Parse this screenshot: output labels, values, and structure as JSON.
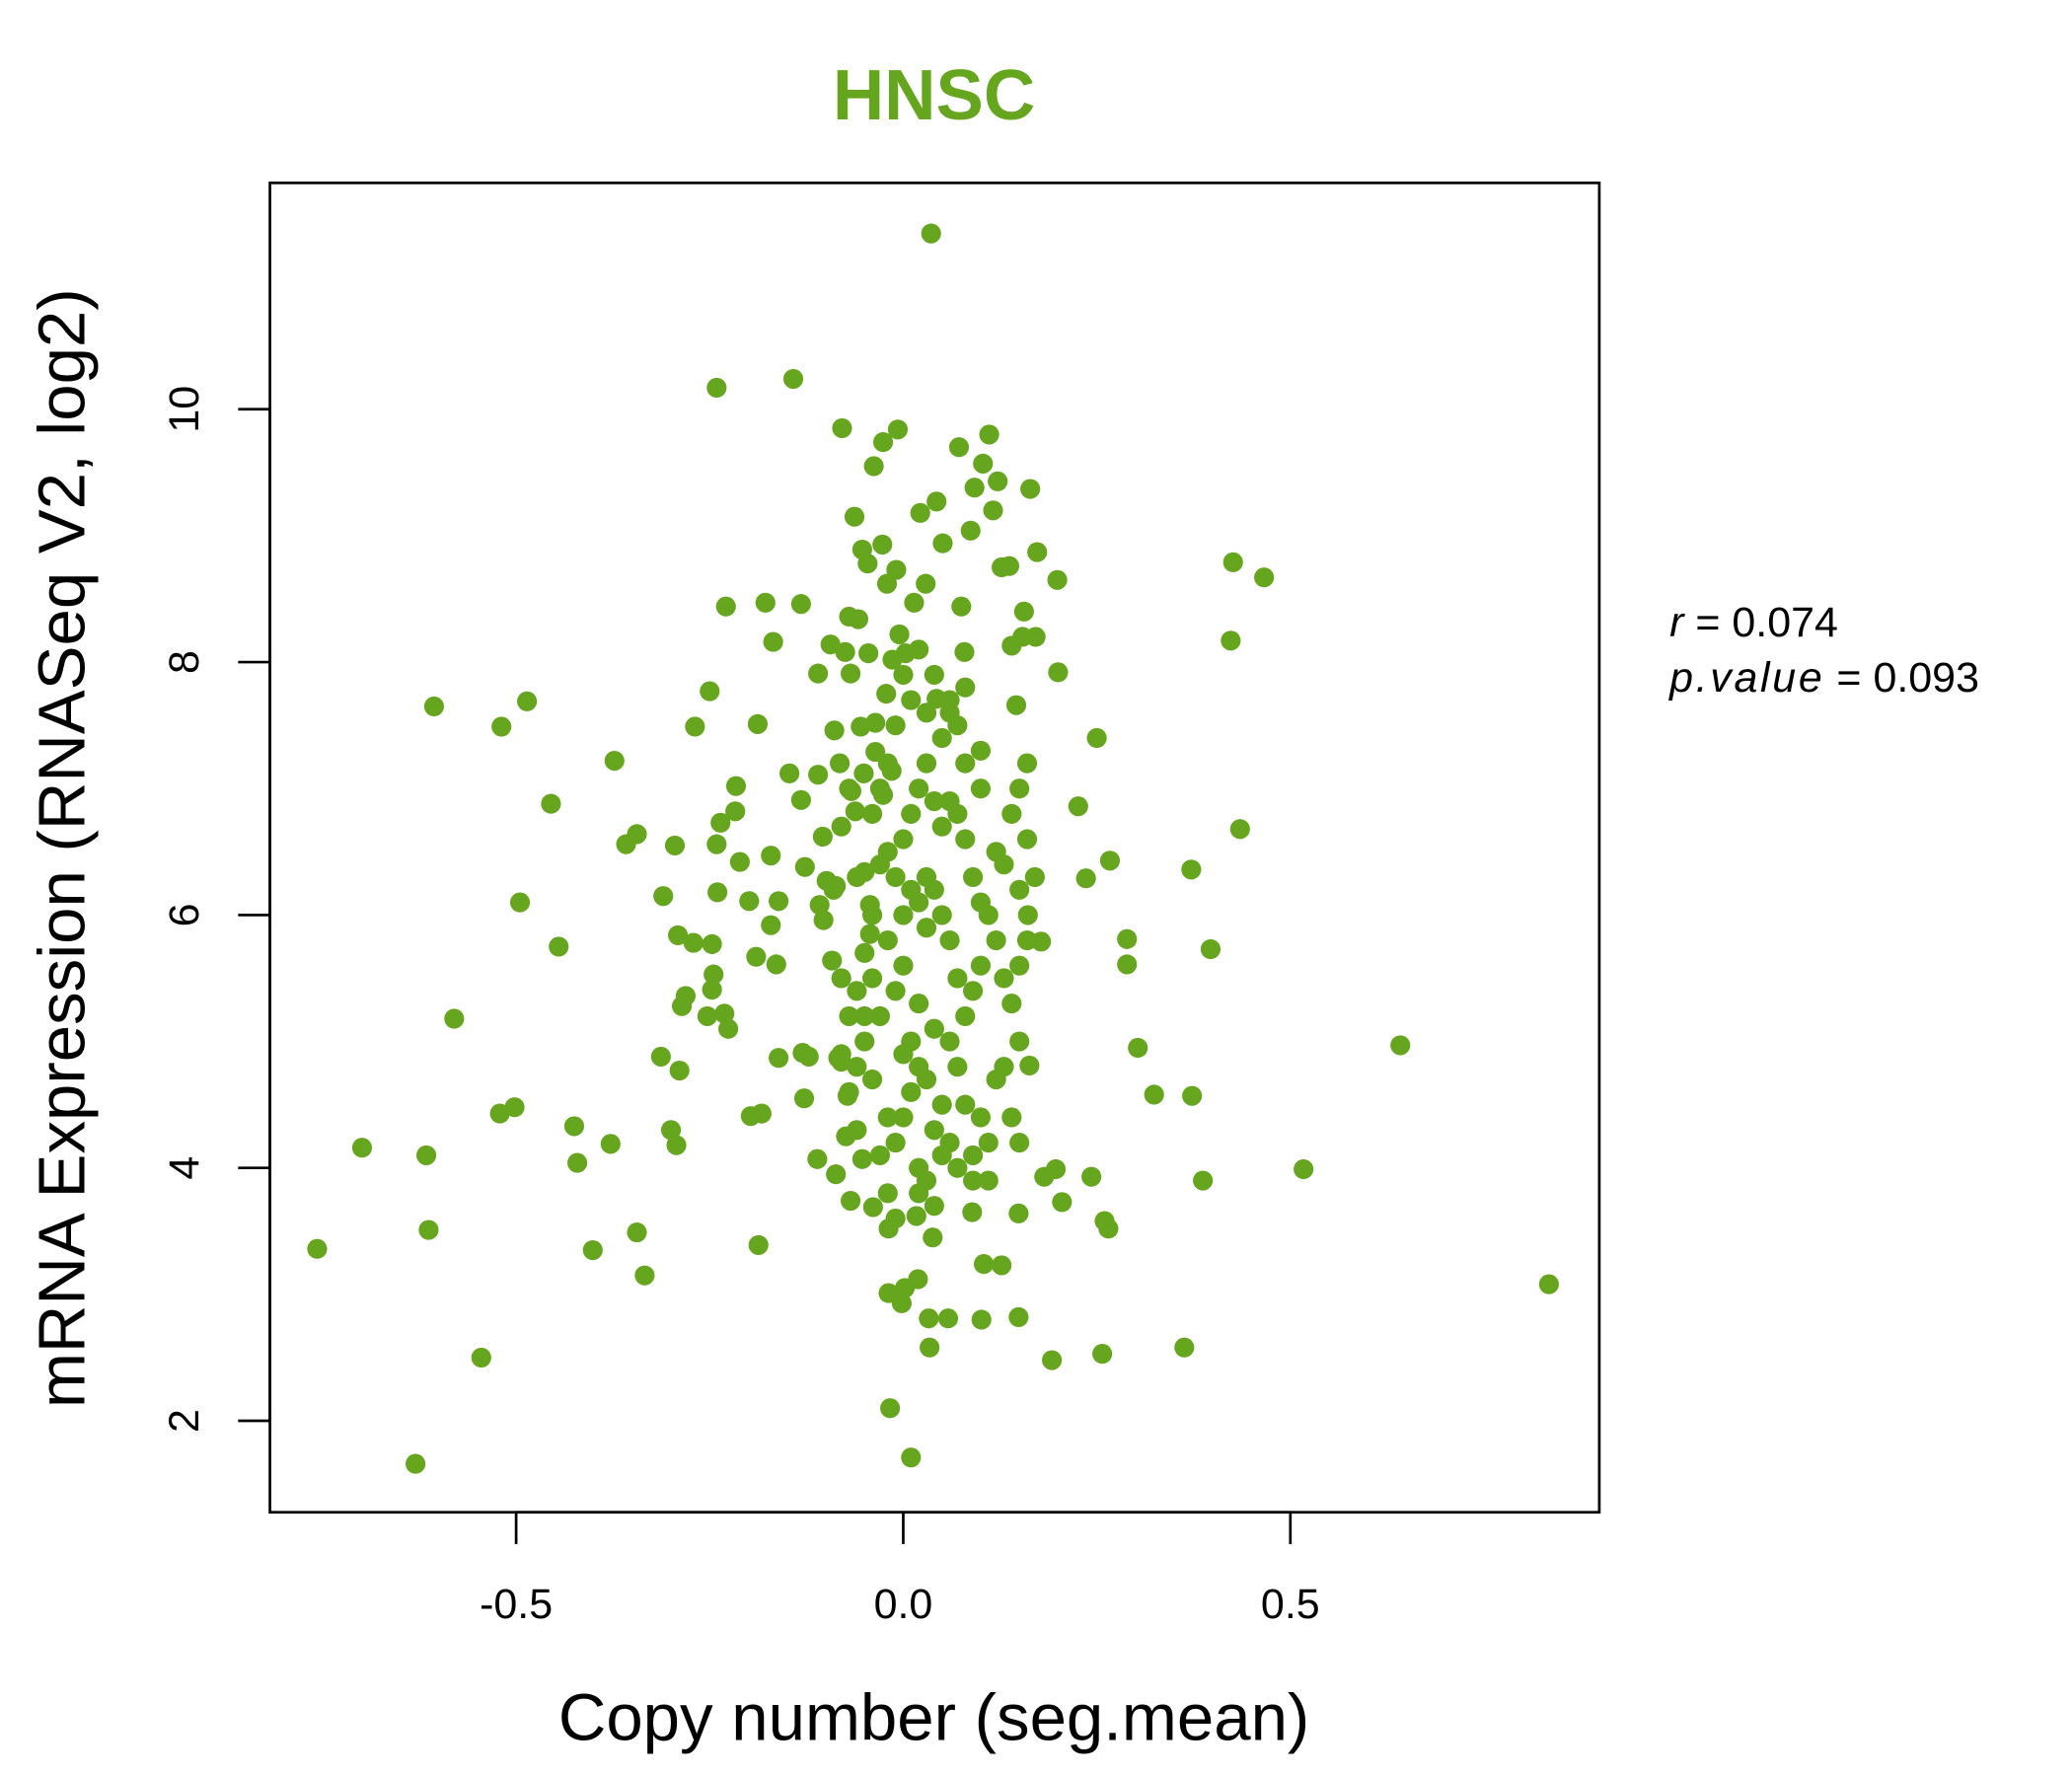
{
  "chart_data": {
    "type": "scatter",
    "title": "HNSC",
    "xlabel": "Copy number (seg.mean)",
    "ylabel": "mRNA Expression (RNASeq V2, log2)",
    "xlim": [
      -0.818,
      0.899
    ],
    "ylim": [
      1.277,
      11.79
    ],
    "xticks": [
      -0.5,
      0.0,
      0.5
    ],
    "xtick_labels": [
      "-0.5",
      "0.0",
      "0.5"
    ],
    "yticks": [
      2,
      4,
      6,
      8,
      10
    ],
    "ytick_labels": [
      "2",
      "4",
      "6",
      "8",
      "10"
    ],
    "grid": false,
    "point_color": "#66A61E",
    "title_color": "#66A61E",
    "stats": {
      "r_label": "r",
      "r_value": "0.074",
      "p_label": "p.value",
      "p_value": "0.093"
    },
    "points": [
      [
        -0.757,
        3.36
      ],
      [
        -0.699,
        4.16
      ],
      [
        -0.63,
        1.66
      ],
      [
        -0.616,
        4.1
      ],
      [
        -0.613,
        3.51
      ],
      [
        -0.606,
        7.65
      ],
      [
        -0.58,
        5.18
      ],
      [
        -0.545,
        2.5
      ],
      [
        -0.521,
        4.43
      ],
      [
        -0.519,
        7.49
      ],
      [
        -0.502,
        4.48
      ],
      [
        -0.495,
        6.1
      ],
      [
        -0.486,
        7.69
      ],
      [
        -0.455,
        6.88
      ],
      [
        -0.445,
        5.75
      ],
      [
        -0.425,
        4.33
      ],
      [
        -0.421,
        4.04
      ],
      [
        -0.401,
        3.35
      ],
      [
        -0.378,
        4.19
      ],
      [
        -0.373,
        7.22
      ],
      [
        -0.358,
        6.56
      ],
      [
        -0.344,
        6.64
      ],
      [
        -0.344,
        3.49
      ],
      [
        -0.334,
        3.15
      ],
      [
        -0.313,
        4.88
      ],
      [
        -0.31,
        6.15
      ],
      [
        -0.3,
        4.3
      ],
      [
        -0.295,
        6.55
      ],
      [
        -0.293,
        4.18
      ],
      [
        -0.291,
        5.84
      ],
      [
        -0.289,
        4.77
      ],
      [
        -0.286,
        5.28
      ],
      [
        -0.281,
        5.36
      ],
      [
        -0.271,
        5.78
      ],
      [
        -0.269,
        7.49
      ],
      [
        -0.253,
        5.2
      ],
      [
        -0.25,
        7.77
      ],
      [
        -0.247,
        5.77
      ],
      [
        -0.247,
        5.41
      ],
      [
        -0.245,
        5.53
      ],
      [
        -0.241,
        6.56
      ],
      [
        -0.241,
        10.17
      ],
      [
        -0.24,
        6.18
      ],
      [
        -0.236,
        6.73
      ],
      [
        -0.231,
        5.22
      ],
      [
        -0.229,
        8.44
      ],
      [
        -0.226,
        5.1
      ],
      [
        -0.217,
        6.82
      ],
      [
        -0.216,
        7.02
      ],
      [
        -0.211,
        6.42
      ],
      [
        -0.199,
        6.11
      ],
      [
        -0.197,
        4.41
      ],
      [
        -0.19,
        5.67
      ],
      [
        -0.188,
        7.51
      ],
      [
        -0.187,
        3.39
      ],
      [
        -0.183,
        4.43
      ],
      [
        -0.178,
        8.47
      ],
      [
        -0.171,
        5.92
      ],
      [
        -0.171,
        6.47
      ],
      [
        -0.168,
        8.16
      ],
      [
        -0.164,
        5.61
      ],
      [
        -0.161,
        4.87
      ],
      [
        -0.161,
        6.11
      ],
      [
        -0.147,
        7.12
      ],
      [
        -0.142,
        10.24
      ],
      [
        -0.132,
        8.46
      ],
      [
        -0.132,
        6.91
      ],
      [
        -0.128,
        4.55
      ],
      [
        -0.127,
        6.38
      ],
      [
        -0.13,
        4.91
      ],
      [
        -0.122,
        4.88
      ],
      [
        -0.111,
        4.07
      ],
      [
        -0.11,
        7.11
      ],
      [
        -0.11,
        7.91
      ],
      [
        -0.108,
        6.08
      ],
      [
        -0.104,
        6.62
      ],
      [
        -0.103,
        5.96
      ],
      [
        -0.099,
        6.27
      ],
      [
        -0.094,
        8.14
      ],
      [
        -0.092,
        5.64
      ],
      [
        -0.089,
        7.46
      ],
      [
        -0.087,
        3.95
      ],
      [
        -0.087,
        6.23
      ],
      [
        -0.084,
        4.87
      ],
      [
        -0.082,
        7.2
      ],
      [
        -0.08,
        4.84
      ],
      [
        -0.079,
        9.85
      ],
      [
        -0.075,
        8.08
      ],
      [
        -0.074,
        4.25
      ],
      [
        -0.072,
        4.57
      ],
      [
        -0.07,
        8.36
      ],
      [
        -0.068,
        7.91
      ],
      [
        -0.068,
        3.74
      ],
      [
        -0.067,
        6.98
      ],
      [
        -0.063,
        9.15
      ],
      [
        -0.062,
        6.82
      ],
      [
        -0.058,
        8.34
      ],
      [
        -0.055,
        7.49
      ],
      [
        -0.053,
        8.89
      ],
      [
        -0.053,
        4.07
      ],
      [
        -0.051,
        7.12
      ],
      [
        -0.05,
        6.34
      ],
      [
        -0.046,
        8.78
      ],
      [
        -0.045,
        8.07
      ],
      [
        -0.043,
        6.08
      ],
      [
        -0.043,
        5.85
      ],
      [
        -0.039,
        3.69
      ],
      [
        -0.038,
        9.55
      ],
      [
        -0.036,
        7.52
      ],
      [
        -0.036,
        7.29
      ],
      [
        -0.027,
        8.93
      ],
      [
        -0.026,
        9.74
      ],
      [
        -0.026,
        6.95
      ],
      [
        -0.022,
        7.75
      ],
      [
        -0.021,
        8.62
      ],
      [
        -0.019,
        3.52
      ],
      [
        -0.019,
        3.01
      ],
      [
        -0.017,
        2.1
      ],
      [
        -0.015,
        7.14
      ],
      [
        -0.014,
        8.02
      ],
      [
        -0.009,
        8.73
      ],
      [
        -0.007,
        9.84
      ],
      [
        -0.005,
        8.22
      ],
      [
        -0.002,
        2.93
      ],
      [
        0.002,
        3.05
      ],
      [
        0.003,
        8.07
      ],
      [
        0.01,
        1.71
      ],
      [
        0.014,
        8.47
      ],
      [
        0.017,
        3.62
      ],
      [
        0.019,
        3.12
      ],
      [
        0.022,
        9.18
      ],
      [
        0.029,
        8.62
      ],
      [
        0.033,
        2.81
      ],
      [
        0.034,
        2.58
      ],
      [
        0.036,
        11.39
      ],
      [
        0.038,
        3.45
      ],
      [
        0.043,
        9.27
      ],
      [
        0.043,
        7.71
      ],
      [
        0.051,
        8.94
      ],
      [
        0.058,
        2.81
      ],
      [
        0.072,
        9.7
      ],
      [
        0.075,
        8.44
      ],
      [
        0.079,
        8.08
      ],
      [
        0.087,
        9.04
      ],
      [
        0.089,
        3.65
      ],
      [
        0.092,
        9.38
      ],
      [
        0.101,
        2.8
      ],
      [
        0.103,
        9.57
      ],
      [
        0.104,
        3.24
      ],
      [
        0.111,
        9.8
      ],
      [
        0.116,
        9.2
      ],
      [
        0.122,
        9.43
      ],
      [
        0.127,
        3.23
      ],
      [
        0.127,
        8.75
      ],
      [
        0.137,
        8.76
      ],
      [
        0.14,
        8.13
      ],
      [
        0.146,
        7.66
      ],
      [
        0.149,
        2.82
      ],
      [
        0.149,
        3.64
      ],
      [
        0.154,
        8.2
      ],
      [
        0.156,
        8.4
      ],
      [
        0.161,
        6.0
      ],
      [
        0.164,
        9.37
      ],
      [
        0.163,
        4.81
      ],
      [
        0.171,
        8.2
      ],
      [
        0.173,
        8.87
      ],
      [
        0.178,
        5.79
      ],
      [
        0.182,
        3.93
      ],
      [
        0.192,
        2.48
      ],
      [
        0.197,
        3.99
      ],
      [
        0.199,
        8.65
      ],
      [
        0.2,
        7.92
      ],
      [
        0.205,
        3.73
      ],
      [
        0.226,
        6.86
      ],
      [
        0.236,
        6.29
      ],
      [
        0.243,
        3.93
      ],
      [
        0.25,
        7.4
      ],
      [
        0.257,
        2.53
      ],
      [
        0.26,
        3.58
      ],
      [
        0.265,
        3.52
      ],
      [
        0.267,
        6.43
      ],
      [
        0.289,
        5.81
      ],
      [
        0.289,
        5.61
      ],
      [
        0.303,
        4.95
      ],
      [
        0.324,
        4.58
      ],
      [
        0.363,
        2.58
      ],
      [
        0.372,
        6.36
      ],
      [
        0.373,
        4.57
      ],
      [
        0.387,
        3.9
      ],
      [
        0.397,
        5.73
      ],
      [
        0.423,
        8.17
      ],
      [
        0.426,
        8.79
      ],
      [
        0.435,
        6.68
      ],
      [
        0.466,
        8.67
      ],
      [
        0.517,
        3.99
      ],
      [
        0.642,
        4.97
      ],
      [
        0.834,
        3.08
      ],
      [
        -0.04,
        5.5
      ],
      [
        -0.03,
        5.2
      ],
      [
        -0.02,
        5.8
      ],
      [
        -0.01,
        5.4
      ],
      [
        0.0,
        5.6
      ],
      [
        0.01,
        5.0
      ],
      [
        0.02,
        5.3
      ],
      [
        0.03,
        5.9
      ],
      [
        -0.05,
        5.0
      ],
      [
        -0.06,
        4.8
      ],
      [
        0.0,
        4.9
      ],
      [
        0.01,
        4.6
      ],
      [
        -0.02,
        4.4
      ],
      [
        0.03,
        4.7
      ],
      [
        0.04,
        4.3
      ],
      [
        0.05,
        4.5
      ],
      [
        0.06,
        4.2
      ],
      [
        0.07,
        4.0
      ],
      [
        -0.03,
        4.1
      ],
      [
        -0.01,
        4.2
      ],
      [
        0.02,
        4.0
      ],
      [
        0.02,
        3.8
      ],
      [
        0.04,
        3.7
      ],
      [
        -0.02,
        3.8
      ],
      [
        0.08,
        4.5
      ],
      [
        0.09,
        4.1
      ],
      [
        0.1,
        4.4
      ],
      [
        0.11,
        4.2
      ],
      [
        0.12,
        4.7
      ],
      [
        0.13,
        4.8
      ],
      [
        0.09,
        5.4
      ],
      [
        0.1,
        5.6
      ],
      [
        0.08,
        5.2
      ],
      [
        0.07,
        5.5
      ],
      [
        0.06,
        5.8
      ],
      [
        0.05,
        6.0
      ],
      [
        0.04,
        6.2
      ],
      [
        0.03,
        6.3
      ],
      [
        0.02,
        6.1
      ],
      [
        0.01,
        6.2
      ],
      [
        0.0,
        6.0
      ],
      [
        -0.01,
        6.3
      ],
      [
        -0.02,
        6.5
      ],
      [
        -0.03,
        6.4
      ],
      [
        -0.04,
        6.0
      ],
      [
        -0.05,
        5.7
      ],
      [
        -0.06,
        5.4
      ],
      [
        -0.07,
        5.2
      ],
      [
        -0.07,
        4.6
      ],
      [
        -0.06,
        4.3
      ],
      [
        0.0,
        6.6
      ],
      [
        0.01,
        6.8
      ],
      [
        0.02,
        7.0
      ],
      [
        0.03,
        7.2
      ],
      [
        0.04,
        6.9
      ],
      [
        0.05,
        6.7
      ],
      [
        0.06,
        6.9
      ],
      [
        0.07,
        6.8
      ],
      [
        0.08,
        6.6
      ],
      [
        0.09,
        6.3
      ],
      [
        0.1,
        6.1
      ],
      [
        0.11,
        6.0
      ],
      [
        0.12,
        5.8
      ],
      [
        0.13,
        5.5
      ],
      [
        0.14,
        5.3
      ],
      [
        0.08,
        7.2
      ],
      [
        0.07,
        7.5
      ],
      [
        0.06,
        7.6
      ],
      [
        0.05,
        7.4
      ],
      [
        0.03,
        7.6
      ],
      [
        0.01,
        7.7
      ],
      [
        -0.01,
        7.5
      ],
      [
        -0.02,
        7.2
      ],
      [
        -0.03,
        7.0
      ],
      [
        -0.04,
        6.8
      ],
      [
        0.0,
        7.9
      ],
      [
        0.02,
        8.1
      ],
      [
        0.04,
        7.9
      ],
      [
        0.06,
        7.7
      ],
      [
        0.08,
        7.8
      ],
      [
        0.1,
        7.3
      ],
      [
        0.1,
        7.0
      ],
      [
        0.12,
        6.5
      ],
      [
        0.13,
        6.4
      ],
      [
        0.14,
        6.8
      ],
      [
        0.15,
        7.0
      ],
      [
        0.16,
        7.2
      ],
      [
        0.15,
        6.2
      ],
      [
        0.16,
        6.6
      ],
      [
        0.17,
        6.3
      ],
      [
        0.15,
        5.6
      ],
      [
        0.16,
        5.8
      ],
      [
        -0.05,
        5.2
      ],
      [
        -0.04,
        4.7
      ],
      [
        0.0,
        4.4
      ],
      [
        0.02,
        4.8
      ],
      [
        0.04,
        5.1
      ],
      [
        0.06,
        5.0
      ],
      [
        0.07,
        4.8
      ],
      [
        -0.01,
        3.6
      ],
      [
        0.03,
        3.9
      ],
      [
        0.05,
        4.1
      ],
      [
        0.09,
        3.9
      ],
      [
        0.11,
        3.9
      ],
      [
        0.14,
        4.4
      ],
      [
        0.15,
        4.2
      ],
      [
        0.15,
        5.0
      ],
      [
        -0.08,
        4.9
      ],
      [
        -0.08,
        5.5
      ],
      [
        -0.09,
        6.2
      ],
      [
        -0.08,
        6.7
      ],
      [
        -0.07,
        7.0
      ],
      [
        -0.06,
        6.3
      ]
    ]
  }
}
